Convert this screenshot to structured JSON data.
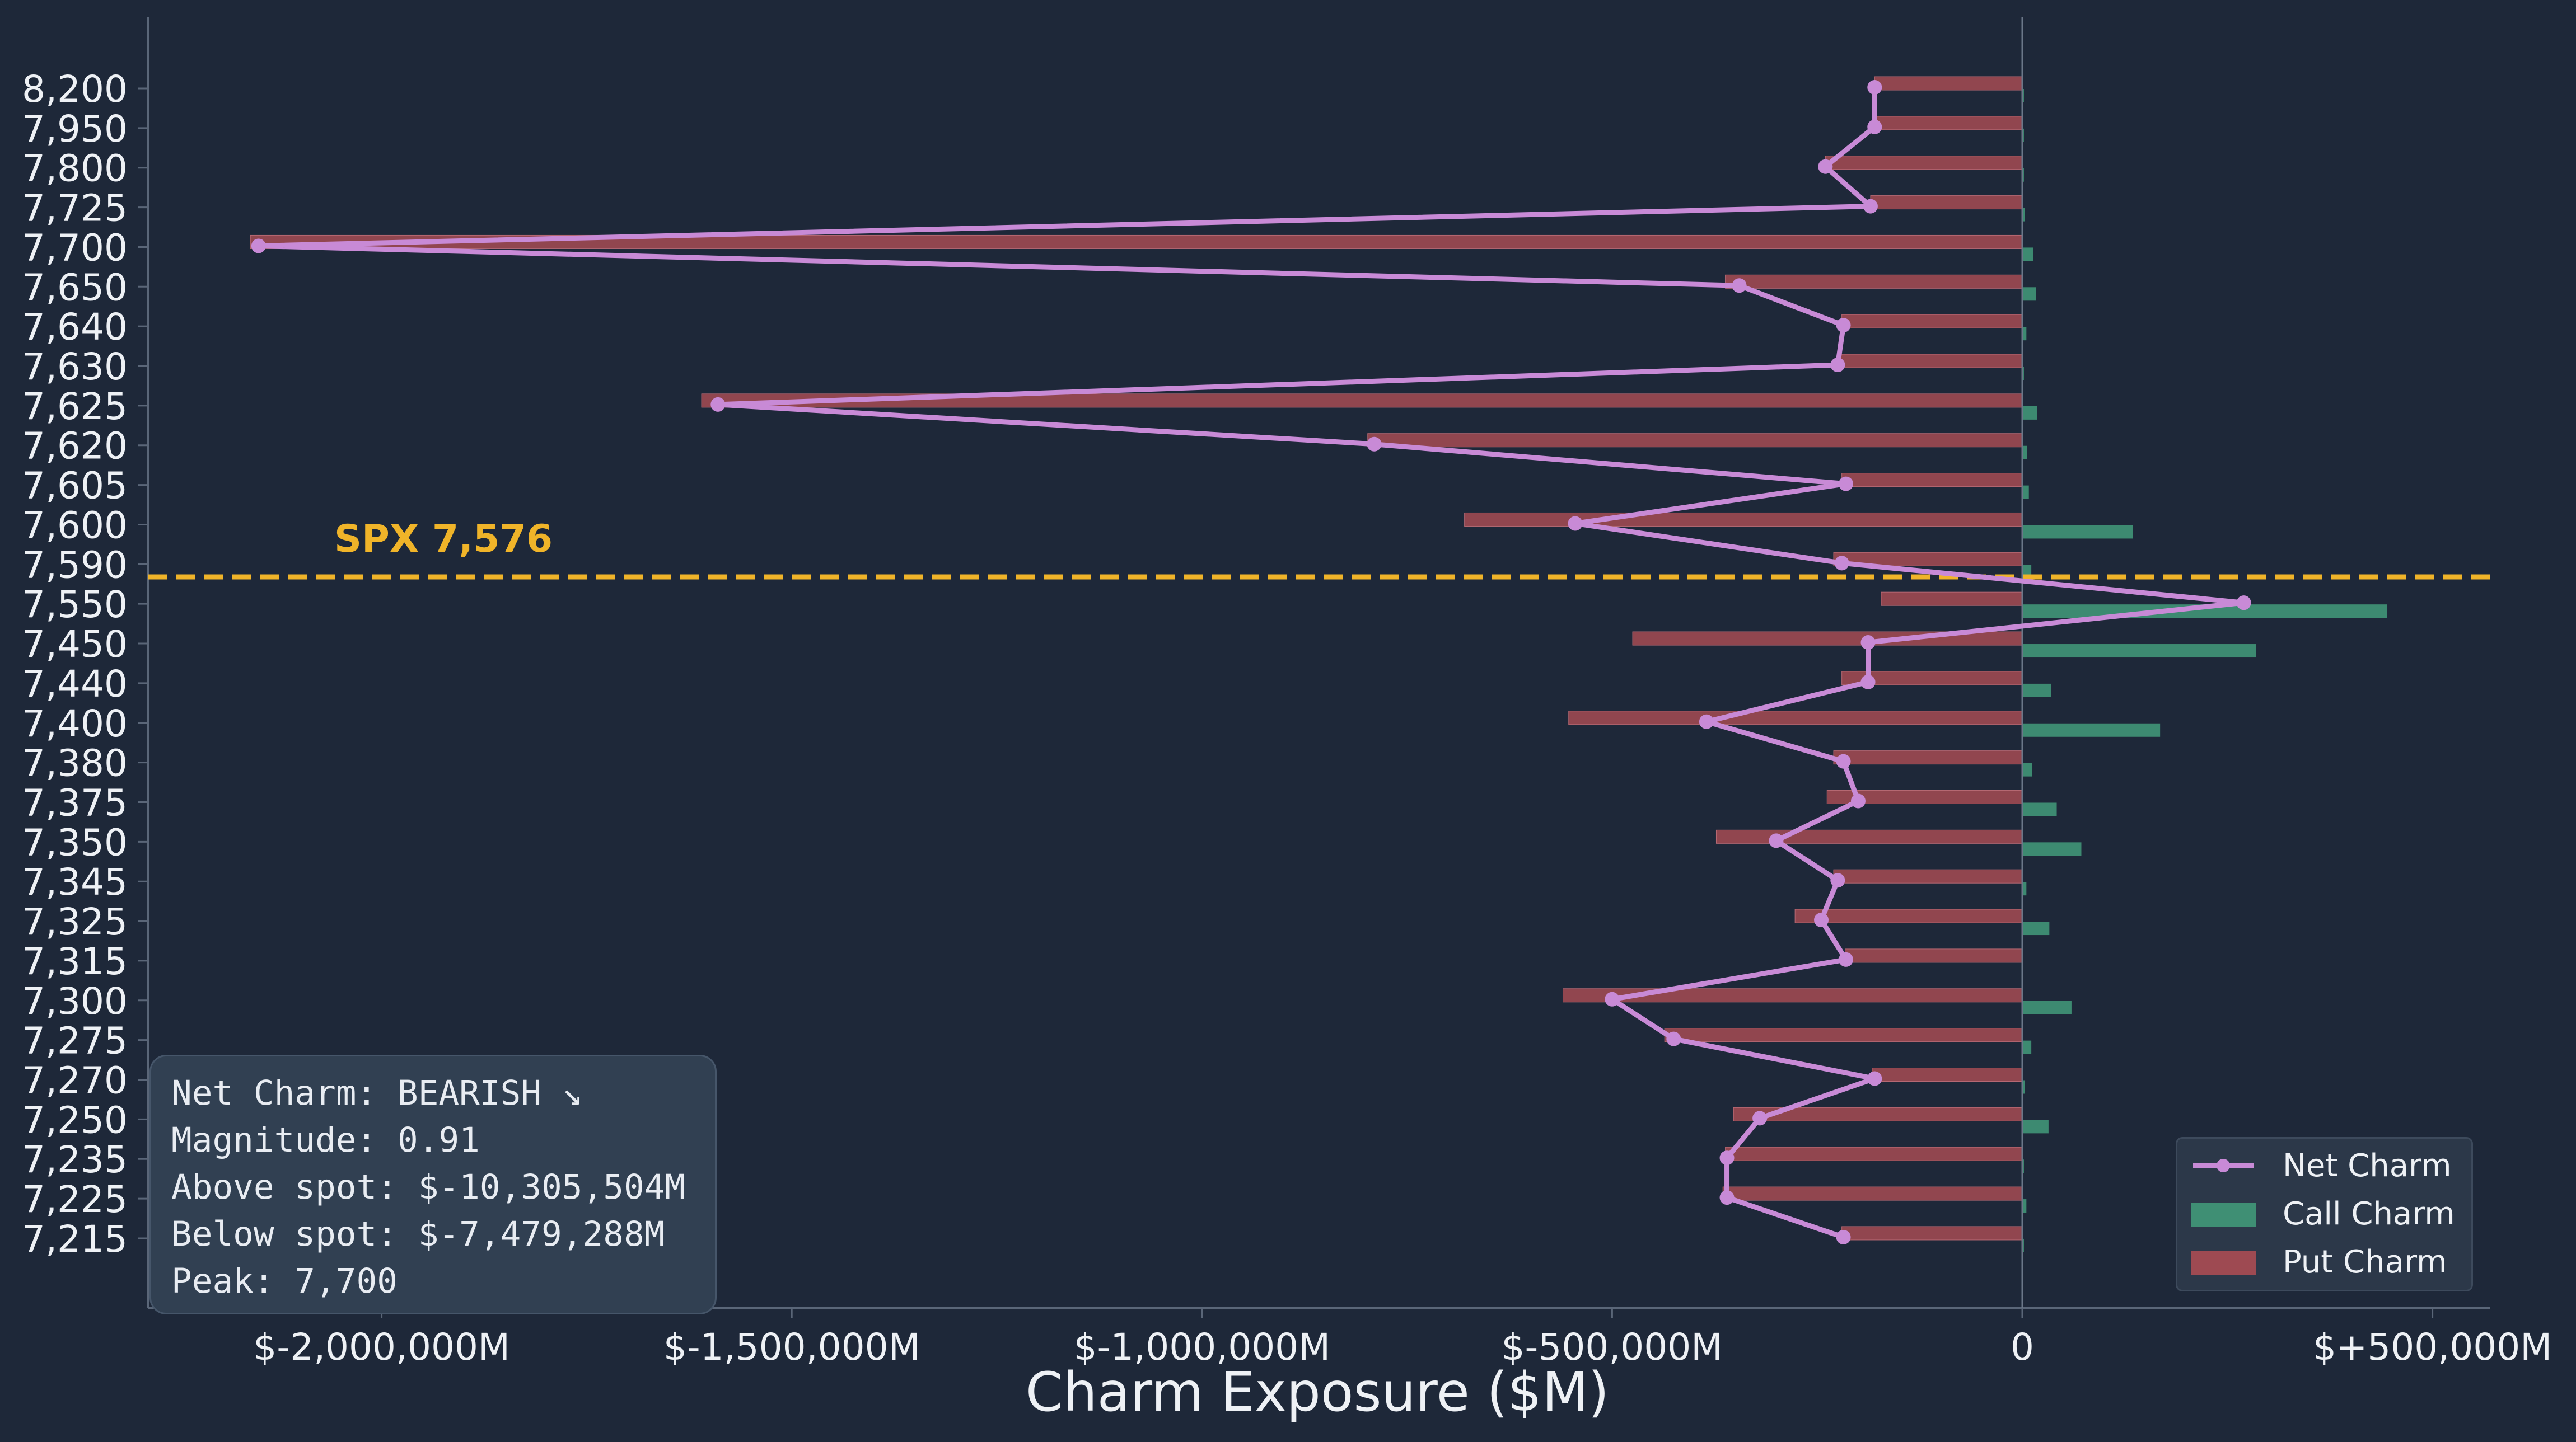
{
  "chart_data": {
    "type": "bar",
    "orientation": "horizontal",
    "xlabel": "Charm Exposure ($M)",
    "xlim": [
      -2300000,
      575000
    ],
    "x_ticks": [
      {
        "value": -2000000,
        "label": "$-2,000,000M"
      },
      {
        "value": -1500000,
        "label": "$-1,500,000M"
      },
      {
        "value": -1000000,
        "label": "$-1,000,000M"
      },
      {
        "value": -500000,
        "label": "$-500,000M"
      },
      {
        "value": 0,
        "label": "0"
      },
      {
        "value": 500000,
        "label": "$+500,000M"
      }
    ],
    "categories": [
      "8,200",
      "7,950",
      "7,800",
      "7,725",
      "7,700",
      "7,650",
      "7,640",
      "7,630",
      "7,625",
      "7,620",
      "7,605",
      "7,600",
      "7,590",
      "7,550",
      "7,450",
      "7,440",
      "7,400",
      "7,380",
      "7,375",
      "7,350",
      "7,345",
      "7,325",
      "7,315",
      "7,300",
      "7,275",
      "7,270",
      "7,250",
      "7,235",
      "7,225",
      "7,215"
    ],
    "series": [
      {
        "name": "Net Charm",
        "type": "line",
        "color": "#c88ad6",
        "values": [
          -180000,
          -180000,
          -240000,
          -185000,
          -2150000,
          -345000,
          -218000,
          -225000,
          -1590000,
          -790000,
          -215000,
          -545000,
          -220000,
          270000,
          -188000,
          -188000,
          -385000,
          -218000,
          -200000,
          -300000,
          -225000,
          -245000,
          -215000,
          -500000,
          -425000,
          -180000,
          -320000,
          -360000,
          -360000,
          -218000
        ]
      },
      {
        "name": "Call Charm",
        "type": "bar",
        "color": "#3f8f74",
        "values": [
          2000,
          2000,
          2000,
          3000,
          13000,
          17000,
          5000,
          2000,
          18000,
          6000,
          8000,
          135000,
          11000,
          445000,
          285000,
          35000,
          168000,
          12000,
          42000,
          72000,
          5000,
          33000,
          1000,
          60000,
          11000,
          3000,
          32000,
          2000,
          5000,
          2000
        ]
      },
      {
        "name": "Put Charm",
        "type": "bar",
        "color": "#9e4a52",
        "values": [
          -180000,
          -180000,
          -240000,
          -185000,
          -2160000,
          -362000,
          -220000,
          -225000,
          -1610000,
          -798000,
          -220000,
          -680000,
          -230000,
          -172000,
          -475000,
          -220000,
          -553000,
          -230000,
          -238000,
          -373000,
          -230000,
          -277000,
          -216000,
          -560000,
          -436000,
          -183000,
          -352000,
          -362000,
          -365000,
          -220000
        ]
      }
    ],
    "spot": {
      "value": 7576,
      "label": "SPX 7,576",
      "color": "#f0b429",
      "style": "dashed"
    },
    "legend_position": "bottom-right",
    "grid": false
  },
  "info_box": {
    "lines": [
      "Net Charm: BEARISH ↘",
      "Magnitude: 0.91",
      "Above spot: $-10,305,504M",
      "Below spot: $-7,479,288M",
      "Peak: 7,700"
    ]
  },
  "colors": {
    "background": "#1e2839",
    "spot_line": "#f0b429",
    "net": "#c88ad6",
    "call": "#3f8f74",
    "put": "#9e4a52"
  }
}
